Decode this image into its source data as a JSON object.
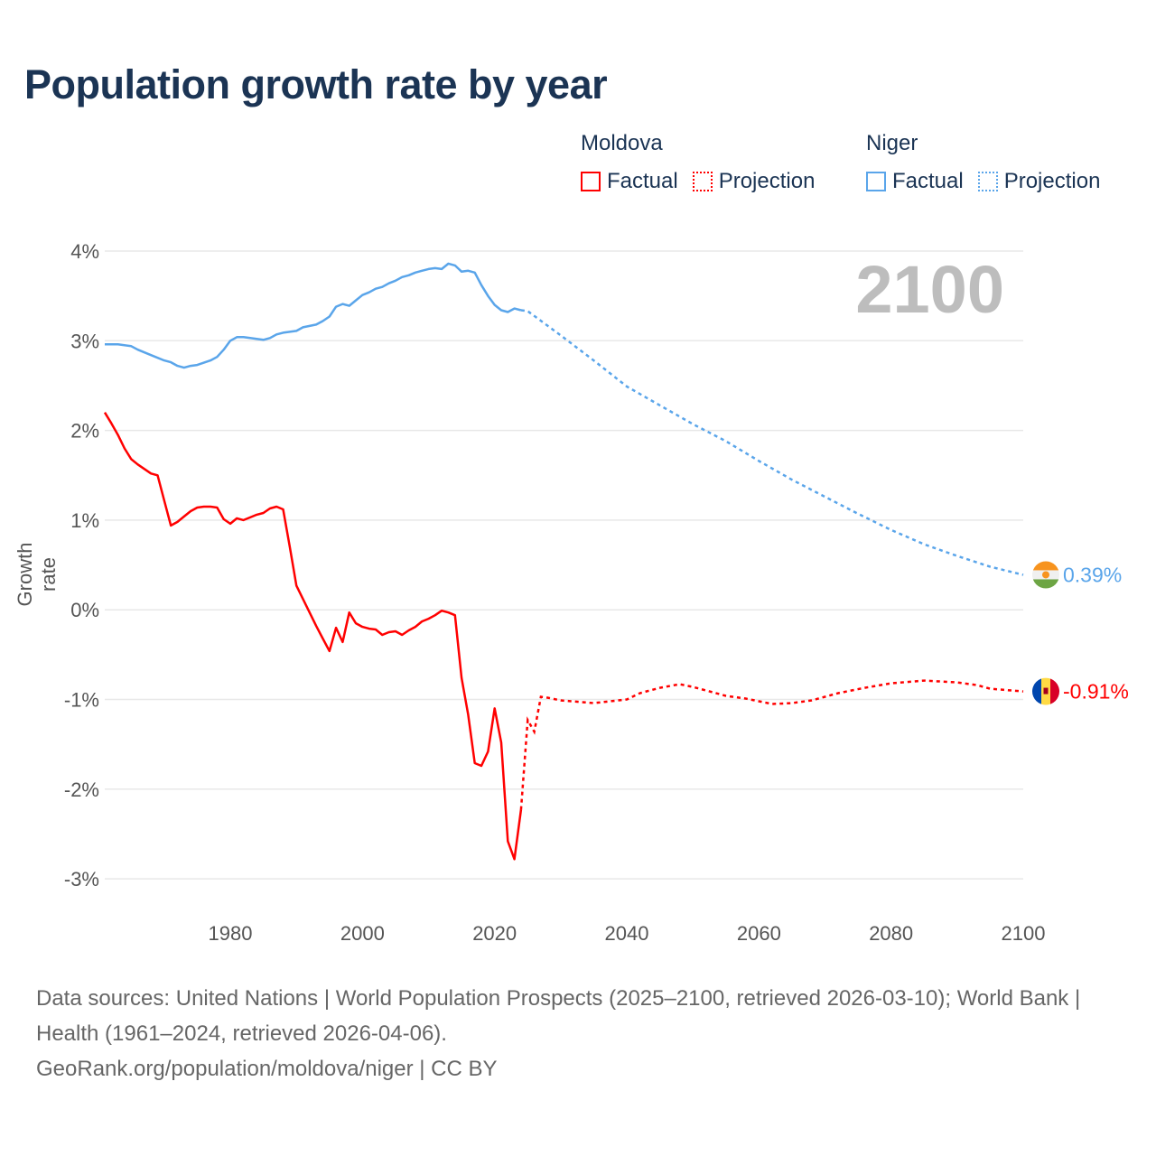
{
  "title": "Population growth rate by year",
  "legend": {
    "groups": [
      {
        "name": "Moldova",
        "color": "#ff0000",
        "factual": "Factual",
        "projection": "Projection"
      },
      {
        "name": "Niger",
        "color": "#5aa5ea",
        "factual": "Factual",
        "projection": "Projection"
      }
    ]
  },
  "current_year": "2100",
  "footer": {
    "sources": "Data sources: United Nations | World Population Prospects (2025–2100, retrieved 2026-03-10); World Bank | Health (1961–2024, retrieved 2026-04-06).",
    "link": "GeoRank.org/population/moldova/niger | CC BY"
  },
  "chart_data": {
    "type": "line",
    "title": "Population growth rate by year",
    "xlabel": "",
    "ylabel": "Growth rate",
    "xlim": [
      1961,
      2100
    ],
    "ylim": [
      -3.2,
      4.2
    ],
    "x_ticks": [
      1980,
      2000,
      2020,
      2040,
      2060,
      2080,
      2100
    ],
    "y_ticks": [
      4,
      3,
      2,
      1,
      0,
      -1,
      -2,
      -3
    ],
    "y_tick_labels": [
      "4%",
      "3%",
      "2%",
      "1%",
      "0%",
      "-1%",
      "-2%",
      "-3%"
    ],
    "grid": true,
    "series": [
      {
        "name": "Moldova",
        "color": "#ff0000",
        "end_label": "-0.91%",
        "flag": "moldova",
        "factual": {
          "x": [
            1961,
            1962,
            1963,
            1964,
            1965,
            1966,
            1967,
            1968,
            1969,
            1970,
            1971,
            1972,
            1973,
            1974,
            1975,
            1976,
            1977,
            1978,
            1979,
            1980,
            1981,
            1982,
            1983,
            1984,
            1985,
            1986,
            1987,
            1988,
            1989,
            1990,
            1991,
            1992,
            1993,
            1994,
            1995,
            1996,
            1997,
            1998,
            1999,
            2000,
            2001,
            2002,
            2003,
            2004,
            2005,
            2006,
            2007,
            2008,
            2009,
            2010,
            2011,
            2012,
            2013,
            2014,
            2015,
            2016,
            2017,
            2018,
            2019,
            2020,
            2021,
            2022,
            2023,
            2024
          ],
          "y": [
            2.2,
            2.08,
            1.95,
            1.8,
            1.68,
            1.62,
            1.57,
            1.52,
            1.5,
            1.22,
            0.94,
            0.98,
            1.04,
            1.1,
            1.14,
            1.15,
            1.15,
            1.14,
            1.01,
            0.96,
            1.02,
            1.0,
            1.03,
            1.06,
            1.08,
            1.13,
            1.15,
            1.12,
            0.7,
            0.27,
            0.12,
            -0.03,
            -0.18,
            -0.32,
            -0.46,
            -0.2,
            -0.36,
            -0.03,
            -0.15,
            -0.19,
            -0.21,
            -0.22,
            -0.28,
            -0.25,
            -0.24,
            -0.28,
            -0.23,
            -0.19,
            -0.13,
            -0.1,
            -0.06,
            -0.01,
            -0.03,
            -0.06,
            -0.76,
            -1.17,
            -1.71,
            -1.74,
            -1.58,
            -1.1,
            -1.48,
            -2.58,
            -2.78,
            -2.23
          ]
        },
        "projection": {
          "x": [
            2024,
            2025,
            2026,
            2027,
            2028,
            2030,
            2035,
            2040,
            2042,
            2045,
            2048,
            2050,
            2055,
            2058,
            2062,
            2065,
            2068,
            2072,
            2076,
            2080,
            2085,
            2090,
            2093,
            2095,
            2100
          ],
          "y": [
            -2.23,
            -1.23,
            -1.36,
            -0.97,
            -0.98,
            -1.01,
            -1.04,
            -1.0,
            -0.93,
            -0.87,
            -0.83,
            -0.86,
            -0.96,
            -0.99,
            -1.05,
            -1.04,
            -1.01,
            -0.93,
            -0.87,
            -0.82,
            -0.79,
            -0.81,
            -0.84,
            -0.88,
            -0.91
          ]
        }
      },
      {
        "name": "Niger",
        "color": "#5aa5ea",
        "end_label": "0.39%",
        "flag": "niger",
        "factual": {
          "x": [
            1961,
            1963,
            1965,
            1966,
            1968,
            1970,
            1971,
            1972,
            1973,
            1974,
            1975,
            1977,
            1978,
            1979,
            1980,
            1981,
            1982,
            1983,
            1985,
            1986,
            1987,
            1988,
            1990,
            1991,
            1993,
            1994,
            1995,
            1996,
            1997,
            1998,
            1999,
            2000,
            2001,
            2002,
            2003,
            2004,
            2005,
            2006,
            2007,
            2008,
            2009,
            2010,
            2011,
            2012,
            2013,
            2014,
            2015,
            2016,
            2017,
            2018,
            2019,
            2020,
            2021,
            2022,
            2023,
            2024
          ],
          "y": [
            2.96,
            2.96,
            2.94,
            2.9,
            2.84,
            2.78,
            2.76,
            2.72,
            2.7,
            2.72,
            2.73,
            2.78,
            2.82,
            2.9,
            3.0,
            3.04,
            3.04,
            3.03,
            3.01,
            3.03,
            3.07,
            3.09,
            3.11,
            3.15,
            3.18,
            3.22,
            3.27,
            3.38,
            3.41,
            3.39,
            3.45,
            3.51,
            3.54,
            3.58,
            3.6,
            3.64,
            3.67,
            3.71,
            3.73,
            3.76,
            3.78,
            3.8,
            3.81,
            3.8,
            3.86,
            3.84,
            3.77,
            3.78,
            3.76,
            3.62,
            3.5,
            3.4,
            3.34,
            3.32,
            3.36,
            3.34
          ]
        },
        "projection": {
          "x": [
            2024,
            2025,
            2030,
            2035,
            2040,
            2045,
            2050,
            2055,
            2060,
            2065,
            2070,
            2075,
            2080,
            2085,
            2090,
            2095,
            2100
          ],
          "y": [
            3.34,
            3.33,
            3.06,
            2.78,
            2.49,
            2.28,
            2.07,
            1.88,
            1.66,
            1.45,
            1.26,
            1.07,
            0.89,
            0.73,
            0.6,
            0.48,
            0.39
          ]
        }
      }
    ]
  }
}
